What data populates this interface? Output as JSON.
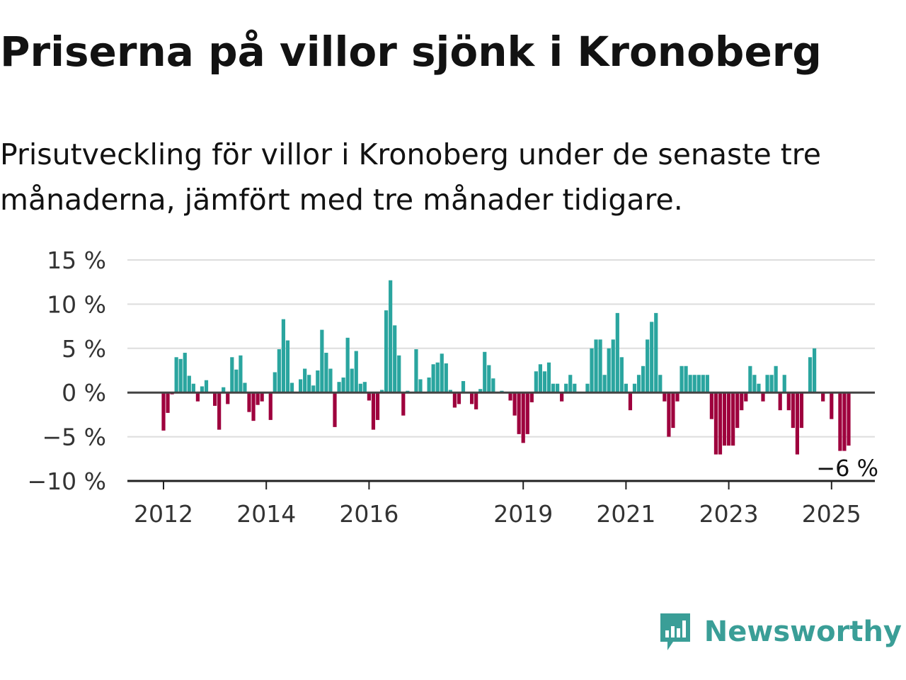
{
  "header": {
    "title": "Priserna på villor sjönk i Kronoberg",
    "subtitle": "Prisutveckling för villor i Kronoberg under de senaste tre månaderna, jämfört med tre månader tidigare."
  },
  "brand": {
    "name": "Newsworthy",
    "logo_icon": "newsworthy-bar-chart-icon"
  },
  "colors": {
    "positive": "#2aa59f",
    "negative": "#9e003d",
    "grid": "#dddddd",
    "zero_line": "#444444"
  },
  "chart_data": {
    "type": "bar",
    "x_start": "2012-01",
    "frequency": "monthly",
    "values": [
      -4.3,
      -2.3,
      -0.2,
      4.0,
      3.8,
      4.5,
      1.9,
      1.0,
      -1.0,
      0.7,
      1.4,
      0.0,
      -1.5,
      -4.2,
      0.6,
      -1.3,
      4.0,
      2.6,
      4.2,
      1.1,
      -2.2,
      -3.2,
      -1.4,
      -1.0,
      0.0,
      -3.1,
      2.3,
      4.9,
      8.3,
      5.9,
      1.1,
      0.0,
      1.5,
      2.7,
      2.0,
      0.8,
      2.5,
      7.1,
      4.5,
      2.7,
      -3.9,
      1.2,
      1.7,
      6.2,
      2.7,
      4.7,
      1.0,
      1.2,
      -0.9,
      -4.2,
      -3.1,
      0.3,
      9.3,
      12.7,
      7.6,
      4.2,
      -2.6,
      0.2,
      0.0,
      4.9,
      1.5,
      0.0,
      1.7,
      3.2,
      3.4,
      4.4,
      3.3,
      0.3,
      -1.7,
      -1.3,
      1.3,
      0.0,
      -1.3,
      -1.9,
      0.4,
      4.6,
      3.1,
      1.6,
      0.0,
      0.2,
      0.0,
      -0.9,
      -2.6,
      -4.7,
      -5.7,
      -4.7,
      -1.1,
      2.4,
      3.2,
      2.4,
      3.4,
      1.0,
      1.0,
      -1.0,
      1.0,
      2.0,
      1.0,
      0.0,
      0.0,
      1.0,
      5.0,
      6.0,
      6.0,
      2.0,
      5.0,
      6.0,
      9.0,
      4.0,
      1.0,
      -2.0,
      1.0,
      2.0,
      3.0,
      6.0,
      8.0,
      9.0,
      2.0,
      -1.0,
      -5.0,
      -4.0,
      -1.0,
      3.0,
      3.0,
      2.0,
      2.0,
      2.0,
      2.0,
      2.0,
      -3.0,
      -7.0,
      -7.0,
      -6.0,
      -6.0,
      -6.0,
      -4.0,
      -2.0,
      -1.0,
      3.0,
      2.0,
      1.0,
      -1.0,
      2.0,
      2.0,
      3.0,
      -2.0,
      2.0,
      -2.0,
      -4.0,
      -7.0,
      -4.0,
      0.0,
      4.0,
      5.0,
      0.0,
      -1.0,
      0.0,
      -3.0,
      0.0,
      -6.6,
      -6.6,
      -6.0
    ],
    "x_ticks": [
      "2012",
      "2014",
      "2016",
      "2019",
      "2021",
      "2023",
      "2025"
    ],
    "y_ticks": [
      15,
      10,
      5,
      0,
      -5,
      -10
    ],
    "y_tick_labels": [
      "15 %",
      "10 %",
      "5 %",
      "0 %",
      "−5 %",
      "−10 %"
    ],
    "ylim": [
      -10,
      15
    ],
    "last_value_label": "−6 %",
    "grid": true,
    "legend": "none"
  }
}
